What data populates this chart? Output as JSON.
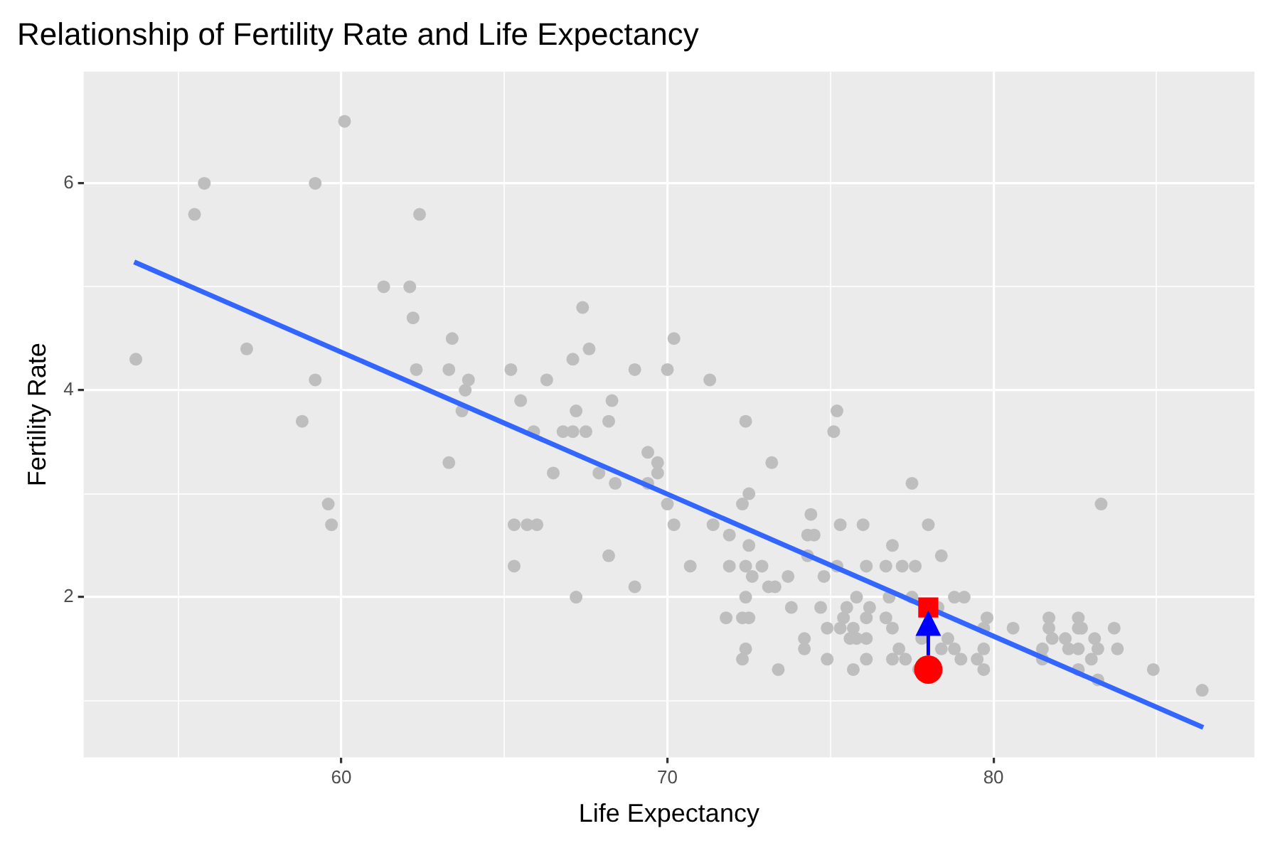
{
  "chart_data": {
    "type": "scatter",
    "title": "Relationship of Fertility Rate and Life Expectancy",
    "xlabel": "Life Expectancy",
    "ylabel": "Fertility Rate",
    "xlim": [
      52.1,
      88.0
    ],
    "ylim": [
      0.45,
      7.08
    ],
    "xticks": [
      {
        "value": 55,
        "label": null
      },
      60,
      {
        "value": 65,
        "label": null
      },
      70,
      {
        "value": 75,
        "label": null
      },
      80,
      {
        "value": 85,
        "label": null
      }
    ],
    "yticks": [
      {
        "value": 1,
        "label": null
      },
      2,
      {
        "value": 3,
        "label": null
      },
      4,
      {
        "value": 5,
        "label": null
      },
      6
    ],
    "grid": true,
    "legend": false,
    "series": [
      {
        "marker": "circle",
        "color": "#bebebe",
        "x": [
          53.7,
          55.5,
          55.8,
          57.1,
          58.8,
          59.2,
          59.2,
          59.6,
          59.7,
          60.1,
          61.3,
          62.1,
          62.2,
          62.3,
          62.4,
          63.3,
          63.3,
          63.4,
          63.7,
          63.8,
          63.9,
          65.2,
          65.5,
          66.3,
          67.4,
          67.6,
          67.1,
          69.0,
          70.0,
          70.2,
          71.3,
          65.9,
          66.8,
          67.1,
          67.5,
          67.2,
          68.3,
          68.2,
          66.5,
          67.9,
          68.4,
          69.4,
          69.7,
          69.7,
          69.4,
          70.0,
          70.2,
          65.3,
          65.7,
          66.0,
          65.3,
          67.2,
          68.2,
          69.0,
          70.7,
          71.4,
          71.9,
          72.4,
          72.5,
          72.3,
          73.2,
          72.5,
          71.9,
          72.4,
          72.6,
          72.9,
          72.4,
          73.1,
          73.3,
          73.7,
          71.8,
          72.3,
          72.5,
          72.4,
          72.3,
          73.4,
          73.8,
          74.2,
          74.2,
          74.4,
          74.3,
          74.5,
          74.3,
          74.8,
          74.7,
          75.2,
          75.1,
          75.3,
          75.2,
          76.0,
          76.1,
          74.9,
          75.3,
          74.9,
          75.7,
          76.1,
          75.4,
          75.5,
          75.8,
          75.7,
          75.6,
          75.8,
          76.1,
          76.1,
          77.5,
          83.3,
          78.0,
          76.9,
          78.4,
          76.7,
          77.2,
          77.6,
          76.8,
          77.5,
          78.8,
          79.1,
          76.2,
          78.3,
          76.7,
          79.8,
          81.7,
          82.6,
          76.9,
          79.7,
          80.6,
          81.7,
          82.6,
          82.7,
          83.7,
          77.8,
          78.6,
          81.8,
          82.2,
          83.1,
          77.1,
          78.4,
          78.8,
          79.7,
          81.5,
          82.3,
          82.6,
          83.2,
          83.8,
          76.9,
          77.3,
          79.0,
          79.5,
          81.5,
          83.0,
          77.7,
          79.7,
          82.6,
          84.9,
          83.2,
          86.4
        ],
        "values": [
          4.3,
          5.7,
          6.0,
          4.4,
          3.7,
          6.0,
          4.1,
          2.9,
          2.7,
          6.6,
          5.0,
          5.0,
          4.7,
          4.2,
          5.7,
          4.2,
          3.3,
          4.5,
          3.8,
          4.0,
          4.1,
          4.2,
          3.9,
          4.1,
          4.8,
          4.4,
          4.3,
          4.2,
          4.2,
          4.5,
          4.1,
          3.6,
          3.6,
          3.6,
          3.6,
          3.8,
          3.9,
          3.7,
          3.2,
          3.2,
          3.1,
          3.4,
          3.3,
          3.2,
          3.1,
          2.9,
          2.7,
          2.7,
          2.7,
          2.7,
          2.3,
          2.0,
          2.4,
          2.1,
          2.3,
          2.7,
          2.6,
          3.7,
          3.0,
          2.9,
          3.3,
          2.5,
          2.3,
          2.3,
          2.2,
          2.3,
          2.0,
          2.1,
          2.1,
          2.2,
          1.8,
          1.8,
          1.8,
          1.5,
          1.4,
          1.3,
          1.9,
          1.6,
          1.5,
          2.8,
          2.6,
          2.6,
          2.4,
          2.2,
          1.9,
          3.8,
          3.6,
          2.7,
          2.3,
          2.7,
          2.3,
          1.7,
          1.7,
          1.4,
          1.3,
          1.4,
          1.8,
          1.9,
          2.0,
          1.7,
          1.6,
          1.6,
          1.6,
          1.8,
          3.1,
          2.9,
          2.7,
          2.5,
          2.4,
          2.3,
          2.3,
          2.3,
          2.0,
          2.0,
          2.0,
          2.0,
          1.9,
          1.9,
          1.8,
          1.8,
          1.8,
          1.8,
          1.7,
          1.7,
          1.7,
          1.7,
          1.7,
          1.7,
          1.7,
          1.6,
          1.6,
          1.6,
          1.6,
          1.6,
          1.5,
          1.5,
          1.5,
          1.5,
          1.5,
          1.5,
          1.5,
          1.5,
          1.5,
          1.4,
          1.4,
          1.4,
          1.4,
          1.4,
          1.4,
          1.3,
          1.3,
          1.3,
          1.3,
          1.2,
          1.1
        ]
      },
      {
        "type": "line",
        "marker": "none",
        "color": "#3366ff",
        "x": [
          53.65,
          86.43
        ],
        "values": [
          5.24,
          0.74
        ]
      },
      {
        "marker": "circle",
        "color": "#ff0000",
        "x": [
          78.0
        ],
        "values": [
          1.3
        ]
      },
      {
        "marker": "square",
        "color": "#ff0000",
        "x": [
          78.0
        ],
        "values": [
          1.9
        ]
      }
    ]
  }
}
